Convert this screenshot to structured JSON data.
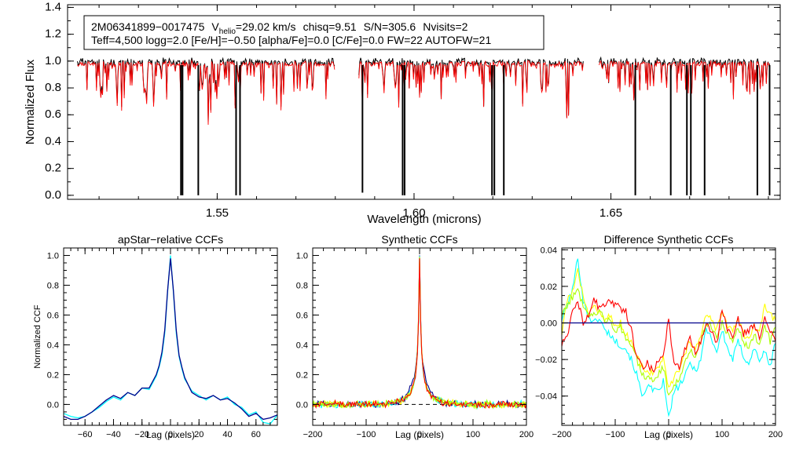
{
  "chart_data": [
    {
      "type": "line",
      "panel": "top",
      "title": "",
      "xlabel": "Wavelength (microns)",
      "ylabel": "Normalized Flux",
      "xlim": [
        1.512,
        1.693
      ],
      "ylim": [
        -0.03,
        1.42
      ],
      "xticks": [
        1.55,
        1.6,
        1.65
      ],
      "xtick_labels": [
        "1.55",
        "1.60",
        "1.65"
      ],
      "yticks": [
        0.0,
        0.2,
        0.4,
        0.6,
        0.8,
        1.0,
        1.2,
        1.4
      ],
      "ytick_labels": [
        "0.0",
        "0.2",
        "0.4",
        "0.6",
        "0.8",
        "1.0",
        "1.2",
        "1.4"
      ],
      "info_box": {
        "line1": {
          "star": "2M06341899−0017475",
          "v_prefix": "V",
          "v_sub": "helio",
          "v_value": "=29.02 km/s",
          "chisq": "chisq=9.51",
          "snr": "S/N=305.6",
          "nvisits": "Nvisits=2"
        },
        "line2": "Teff=4,500 logg=2.0 [Fe/H]=−0.50 [alpha/Fe]=0.0 [C/Fe]=0.0 FW=22 AUTOFW=21"
      },
      "chips": [
        [
          1.5145,
          1.58
        ],
        [
          1.586,
          1.643
        ],
        [
          1.647,
          1.6905
        ]
      ],
      "deep_lines": [
        {
          "x": 1.5408,
          "y": 0.0
        },
        {
          "x": 1.5412,
          "y": 0.0
        },
        {
          "x": 1.5452,
          "y": 0.0
        },
        {
          "x": 1.5548,
          "y": 0.0
        },
        {
          "x": 1.5558,
          "y": 0.0
        },
        {
          "x": 1.5869,
          "y": 0.02
        },
        {
          "x": 1.5971,
          "y": 0.0
        },
        {
          "x": 1.5976,
          "y": 0.0
        },
        {
          "x": 1.6198,
          "y": 0.0
        },
        {
          "x": 1.6204,
          "y": 0.0
        },
        {
          "x": 1.6228,
          "y": 0.0
        },
        {
          "x": 1.6562,
          "y": 0.0
        },
        {
          "x": 1.6652,
          "y": 0.0
        },
        {
          "x": 1.6693,
          "y": 0.0
        },
        {
          "x": 1.6703,
          "y": 0.0
        },
        {
          "x": 1.6738,
          "y": 0.0
        },
        {
          "x": 1.6872,
          "y": 0.0
        },
        {
          "x": 1.6903,
          "y": 0.0
        }
      ],
      "series": [
        {
          "name": "observed",
          "color": "#000000"
        },
        {
          "name": "model",
          "color": "#ff0000"
        }
      ]
    },
    {
      "type": "line",
      "panel": "bottom-left",
      "title": "apStar−relative CCFs",
      "xlabel": "Lag (pixels)",
      "ylabel": "Normalized CCF",
      "xlim": [
        -75,
        75
      ],
      "ylim": [
        -0.14,
        1.05
      ],
      "xticks": [
        -60,
        -40,
        -20,
        0,
        20,
        40,
        60
      ],
      "xtick_labels": [
        "−60",
        "−40",
        "−20",
        "0",
        "20",
        "40",
        "60"
      ],
      "yticks": [
        0.0,
        0.2,
        0.4,
        0.6,
        0.8,
        1.0
      ],
      "ytick_labels": [
        "0.0",
        "0.2",
        "0.4",
        "0.6",
        "0.8",
        "1.0"
      ],
      "series": [
        {
          "name": "visit-1",
          "color": "#00ffff",
          "x": [
            -75,
            -70,
            -65,
            -60,
            -55,
            -50,
            -45,
            -40,
            -35,
            -30,
            -25,
            -20,
            -15,
            -10,
            -8,
            -6,
            -4,
            -2,
            0,
            2,
            4,
            6,
            8,
            10,
            15,
            20,
            25,
            30,
            35,
            40,
            45,
            50,
            55,
            60,
            65,
            70,
            75
          ],
          "y": [
            -0.06,
            -0.08,
            -0.09,
            -0.08,
            -0.05,
            -0.02,
            0.02,
            0.05,
            0.03,
            0.08,
            0.06,
            0.11,
            0.1,
            0.19,
            0.25,
            0.33,
            0.48,
            0.76,
            1.0,
            0.76,
            0.48,
            0.32,
            0.24,
            0.17,
            0.09,
            0.06,
            0.03,
            0.06,
            0.03,
            0.05,
            0.0,
            -0.02,
            -0.07,
            -0.05,
            -0.12,
            -0.13,
            -0.07
          ]
        },
        {
          "name": "visit-2",
          "color": "#00008b",
          "x": [
            -75,
            -70,
            -65,
            -60,
            -55,
            -50,
            -45,
            -40,
            -35,
            -30,
            -25,
            -20,
            -15,
            -10,
            -8,
            -6,
            -4,
            -2,
            0,
            2,
            4,
            6,
            8,
            10,
            15,
            20,
            25,
            30,
            35,
            40,
            45,
            50,
            55,
            60,
            65,
            70,
            75
          ],
          "y": [
            -0.08,
            -0.1,
            -0.1,
            -0.08,
            -0.05,
            -0.01,
            0.03,
            0.06,
            0.04,
            0.08,
            0.06,
            0.11,
            0.11,
            0.2,
            0.26,
            0.35,
            0.5,
            0.77,
            0.98,
            0.77,
            0.5,
            0.33,
            0.25,
            0.18,
            0.08,
            0.05,
            0.04,
            0.06,
            0.03,
            0.04,
            0.01,
            -0.03,
            -0.08,
            -0.06,
            -0.1,
            -0.09,
            -0.07
          ]
        }
      ]
    },
    {
      "type": "line",
      "panel": "bottom-middle",
      "title": "Synthetic CCFs",
      "xlabel": "Lag (pixels)",
      "ylabel": "",
      "xlim": [
        -200,
        200
      ],
      "ylim": [
        -0.14,
        1.05
      ],
      "xticks": [
        -200,
        -100,
        0,
        100,
        200
      ],
      "xtick_labels": [
        "−200",
        "−100",
        "0",
        "100",
        "200"
      ],
      "yticks": [
        0.0,
        0.2,
        0.4,
        0.6,
        0.8,
        1.0
      ],
      "ytick_labels": [
        "0.0",
        "0.2",
        "0.4",
        "0.6",
        "0.8",
        "1.0"
      ],
      "zero_line": {
        "y": 0.0,
        "style": "dashed"
      },
      "series": [
        {
          "name": "synthetic-1",
          "color": "#00008b"
        },
        {
          "name": "synthetic-2",
          "color": "#00ffff"
        },
        {
          "name": "synthetic-3",
          "color": "#ffff00"
        },
        {
          "name": "synthetic-4",
          "color": "#aaff00"
        },
        {
          "name": "synthetic-5",
          "color": "#ff0000"
        }
      ],
      "peak": {
        "x": 0,
        "y": 1.0
      }
    },
    {
      "type": "line",
      "panel": "bottom-right",
      "title": "Difference Synthetic CCFs",
      "xlabel": "Lag (pixels)",
      "ylabel": "",
      "xlim": [
        -200,
        200
      ],
      "ylim": [
        -0.056,
        0.041
      ],
      "xticks": [
        -200,
        -100,
        0,
        100,
        200
      ],
      "xtick_labels": [
        "−200",
        "−100",
        "0",
        "100",
        "200"
      ],
      "yticks": [
        -0.04,
        -0.02,
        0.0,
        0.02,
        0.04
      ],
      "ytick_labels": [
        "−0.04",
        "−0.02",
        "0.00",
        "0.02",
        "0.04"
      ],
      "zero_line": {
        "y": 0.0,
        "color": "#00008b"
      },
      "series": [
        {
          "name": "diff-1",
          "color": "#00ffff",
          "x": [
            -200,
            -190,
            -180,
            -170,
            -160,
            -150,
            -140,
            -130,
            -120,
            -110,
            -100,
            -90,
            -80,
            -70,
            -60,
            -50,
            -40,
            -30,
            -20,
            -10,
            0,
            10,
            20,
            30,
            40,
            50,
            60,
            70,
            80,
            90,
            100,
            110,
            120,
            130,
            140,
            150,
            160,
            170,
            180,
            190,
            200
          ],
          "y": [
            0.002,
            0.01,
            0.018,
            0.036,
            0.012,
            0.004,
            0.0,
            0.003,
            -0.004,
            -0.006,
            -0.01,
            -0.012,
            -0.014,
            -0.02,
            -0.028,
            -0.04,
            -0.034,
            -0.037,
            -0.038,
            -0.032,
            -0.052,
            -0.038,
            -0.034,
            -0.03,
            -0.022,
            -0.026,
            -0.02,
            -0.003,
            -0.008,
            -0.016,
            -0.004,
            -0.014,
            -0.02,
            -0.01,
            -0.018,
            -0.022,
            -0.014,
            -0.02,
            -0.016,
            -0.024,
            -0.01
          ]
        },
        {
          "name": "diff-2",
          "color": "#ffff00",
          "x": [
            -200,
            -190,
            -180,
            -170,
            -160,
            -150,
            -140,
            -130,
            -120,
            -110,
            -100,
            -90,
            -80,
            -70,
            -60,
            -50,
            -40,
            -30,
            -20,
            -10,
            0,
            10,
            20,
            30,
            40,
            50,
            60,
            70,
            80,
            90,
            100,
            110,
            120,
            130,
            140,
            150,
            160,
            170,
            180,
            190,
            200
          ],
          "y": [
            -0.006,
            0.012,
            0.018,
            0.028,
            0.016,
            0.004,
            0.01,
            0.006,
            0.002,
            0.004,
            -0.002,
            0.0,
            -0.006,
            -0.01,
            -0.018,
            -0.024,
            -0.026,
            -0.028,
            -0.024,
            -0.02,
            -0.036,
            -0.03,
            -0.026,
            -0.018,
            -0.01,
            -0.014,
            -0.008,
            0.004,
            0.002,
            -0.004,
            0.006,
            -0.002,
            -0.004,
            0.002,
            -0.006,
            -0.01,
            -0.002,
            -0.006,
            0.01,
            0.004,
            0.002
          ]
        },
        {
          "name": "diff-3",
          "color": "#aaff00",
          "x": [
            -200,
            -190,
            -180,
            -170,
            -160,
            -150,
            -140,
            -130,
            -120,
            -110,
            -100,
            -90,
            -80,
            -70,
            -60,
            -50,
            -40,
            -30,
            -20,
            -10,
            0,
            10,
            20,
            30,
            40,
            50,
            60,
            70,
            80,
            90,
            100,
            110,
            120,
            130,
            140,
            150,
            160,
            170,
            180,
            190,
            200
          ],
          "y": [
            0.004,
            0.01,
            0.014,
            0.018,
            0.01,
            0.006,
            0.004,
            0.008,
            0.0,
            0.002,
            -0.004,
            -0.002,
            -0.008,
            -0.012,
            -0.02,
            -0.028,
            -0.03,
            -0.032,
            -0.028,
            -0.024,
            -0.04,
            -0.034,
            -0.03,
            -0.022,
            -0.014,
            -0.018,
            -0.012,
            0.0,
            -0.002,
            -0.008,
            0.0,
            -0.006,
            -0.01,
            -0.002,
            -0.01,
            -0.014,
            -0.006,
            -0.012,
            -0.002,
            -0.01,
            -0.002
          ]
        },
        {
          "name": "diff-4",
          "color": "#ff0000",
          "x": [
            -200,
            -190,
            -180,
            -170,
            -160,
            -150,
            -140,
            -130,
            -120,
            -110,
            -100,
            -90,
            -80,
            -70,
            -60,
            -50,
            -40,
            -30,
            -20,
            -10,
            0,
            10,
            20,
            30,
            40,
            50,
            60,
            70,
            80,
            90,
            100,
            110,
            120,
            130,
            140,
            150,
            160,
            170,
            180,
            190,
            200
          ],
          "y": [
            -0.012,
            -0.008,
            0.006,
            0.012,
            0.0,
            0.004,
            0.014,
            0.008,
            0.01,
            0.012,
            0.01,
            0.008,
            0.006,
            -0.004,
            -0.018,
            -0.024,
            -0.022,
            -0.026,
            -0.022,
            -0.016,
            0.002,
            -0.022,
            -0.024,
            -0.014,
            -0.008,
            -0.016,
            -0.01,
            0.0,
            -0.004,
            -0.012,
            0.008,
            -0.004,
            -0.008,
            0.002,
            -0.006,
            -0.004,
            -0.002,
            -0.008,
            0.002,
            -0.004,
            -0.01
          ]
        }
      ]
    }
  ]
}
